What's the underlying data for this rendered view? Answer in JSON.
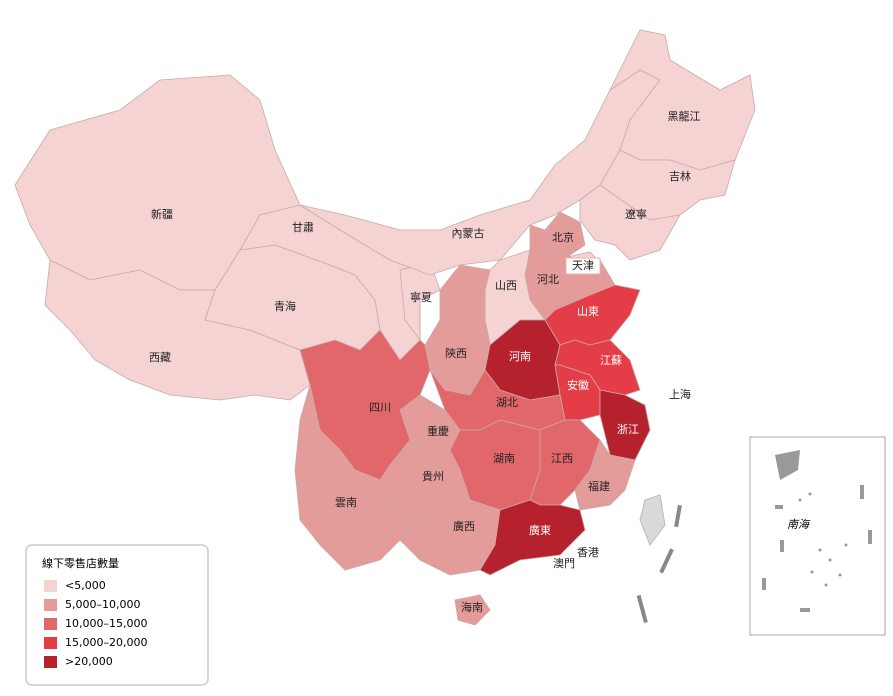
{
  "map": {
    "legend": {
      "title": "線下零售店數量",
      "items": [
        {
          "label": "<5,000",
          "color": "#f6d3d3"
        },
        {
          "label": "5,000–10,000",
          "color": "#e39c99"
        },
        {
          "label": "10,000–15,000",
          "color": "#e2676a"
        },
        {
          "label": "15,000–20,000",
          "color": "#e43d48"
        },
        {
          "label": ">20,000",
          "color": "#b5222e"
        }
      ]
    },
    "regions": [
      {
        "name": "新疆",
        "level": 0
      },
      {
        "name": "西藏",
        "level": 0
      },
      {
        "name": "青海",
        "level": 0
      },
      {
        "name": "甘肅",
        "level": 0
      },
      {
        "name": "寧夏",
        "level": 0
      },
      {
        "name": "內蒙古",
        "level": 0
      },
      {
        "name": "黑龍江",
        "level": 0
      },
      {
        "name": "吉林",
        "level": 0
      },
      {
        "name": "遼寧",
        "level": 0
      },
      {
        "name": "河北",
        "level": 1
      },
      {
        "name": "北京",
        "level": 1
      },
      {
        "name": "天津",
        "level": 0
      },
      {
        "name": "山西",
        "level": 0
      },
      {
        "name": "山東",
        "level": 3
      },
      {
        "name": "陝西",
        "level": 1
      },
      {
        "name": "河南",
        "level": 4
      },
      {
        "name": "江蘇",
        "level": 3
      },
      {
        "name": "安徽",
        "level": 3
      },
      {
        "name": "上海"
      },
      {
        "name": "浙江",
        "level": 4
      },
      {
        "name": "湖北",
        "level": 2
      },
      {
        "name": "重慶",
        "level": 1
      },
      {
        "name": "四川",
        "level": 2
      },
      {
        "name": "湖南",
        "level": 2
      },
      {
        "name": "江西",
        "level": 2
      },
      {
        "name": "福建",
        "level": 1
      },
      {
        "name": "貴州",
        "level": 1
      },
      {
        "name": "雲南",
        "level": 1
      },
      {
        "name": "廣西",
        "level": 1
      },
      {
        "name": "廣東",
        "level": 4
      },
      {
        "name": "香港"
      },
      {
        "name": "澳門"
      },
      {
        "name": "海南",
        "level": 1
      }
    ],
    "inset_label": "南海"
  }
}
